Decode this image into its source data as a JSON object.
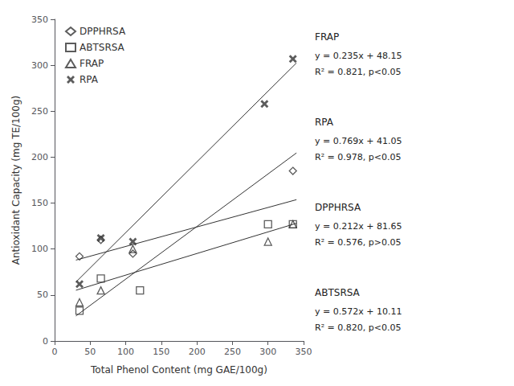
{
  "chart_data": {
    "type": "scatter",
    "xlabel": "Total Phenol Content (mg GAE/100g)",
    "ylabel": "Antioxidant Capacity (mg TE/100g)",
    "xlim": [
      0,
      350
    ],
    "ylim": [
      0,
      350
    ],
    "xticks": [
      0,
      50,
      100,
      150,
      200,
      250,
      300,
      350
    ],
    "yticks": [
      0,
      50,
      100,
      150,
      200,
      250,
      300,
      350
    ],
    "grid": false,
    "legend": "upper left",
    "color": "#333333",
    "series": [
      {
        "name": "DPPHRSA",
        "marker": "diamond",
        "x": [
          35,
          65,
          110,
          335
        ],
        "y": [
          92,
          110,
          95,
          185
        ],
        "fit": {
          "x": [
            30,
            340
          ],
          "y": [
            88.01,
            153.73
          ]
        }
      },
      {
        "name": "ABTSRSA",
        "marker": "square",
        "x": [
          35,
          65,
          120,
          300,
          335
        ],
        "y": [
          33,
          68,
          55,
          127,
          127
        ],
        "fit": {
          "x": [
            30,
            340
          ],
          "y": [
            27.27,
            204.59
          ]
        }
      },
      {
        "name": "FRAP",
        "marker": "triangle",
        "x": [
          35,
          65,
          110,
          300,
          335
        ],
        "y": [
          42,
          55,
          100,
          108,
          127
        ],
        "fit": {
          "x": [
            30,
            340
          ],
          "y": [
            55.2,
            128.05
          ]
        }
      },
      {
        "name": "RPA",
        "marker": "x",
        "x": [
          35,
          65,
          110,
          295,
          335
        ],
        "y": [
          62,
          112,
          108,
          258,
          307
        ],
        "fit": {
          "x": [
            30,
            340
          ],
          "y": [
            64.12,
            302.51
          ]
        }
      }
    ],
    "annotations": [
      {
        "name": "FRAP",
        "equation": "y = 0.235x + 48.15",
        "r2": "R² = 0.821, p<0.05"
      },
      {
        "name": "RPA",
        "equation": "y = 0.769x + 41.05",
        "r2": "R² = 0.978, p<0.05"
      },
      {
        "name": "DPPHRSA",
        "equation": "y = 0.212x + 81.65",
        "r2": "R² = 0.576, p>0.05"
      },
      {
        "name": "ABTSRSA",
        "equation": "y = 0.572x + 10.11",
        "r2": "R² = 0.820, p<0.05"
      }
    ]
  }
}
